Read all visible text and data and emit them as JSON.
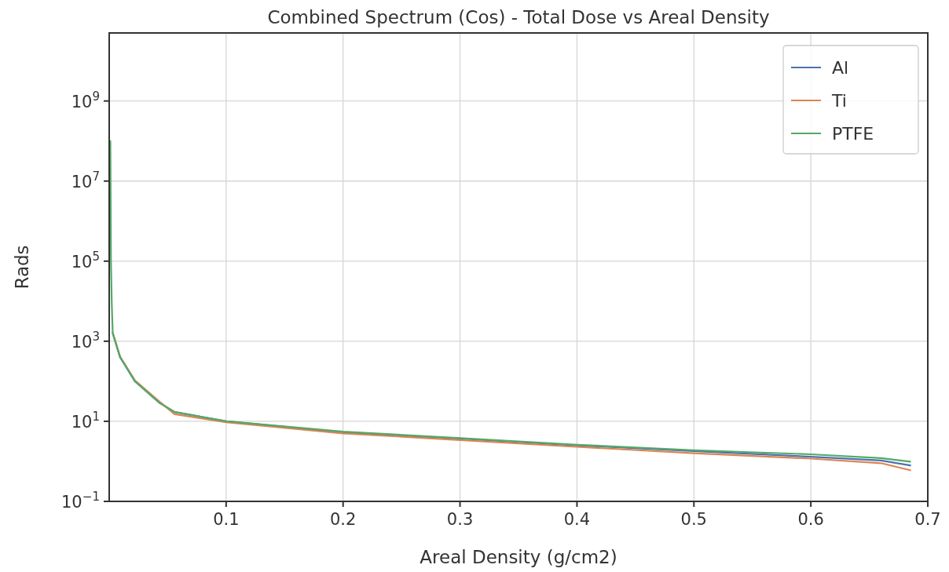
{
  "chart_data": {
    "type": "line",
    "title": "Combined Spectrum (Cos) - Total Dose vs Areal Density",
    "xlabel": "Areal Density (g/cm2)",
    "ylabel": "Rads",
    "x": [
      0.001,
      0.0015,
      0.0022,
      0.003,
      0.0093,
      0.022,
      0.043,
      0.056,
      0.1,
      0.2,
      0.3,
      0.4,
      0.5,
      0.6,
      0.66,
      0.685
    ],
    "series": [
      {
        "name": "Al",
        "color": "#4c72b0",
        "values": [
          null,
          null,
          null,
          1600,
          400,
          100,
          29,
          17,
          10,
          5.3,
          3.7,
          2.5,
          1.8,
          1.3,
          1.05,
          0.79
        ]
      },
      {
        "name": "Ti",
        "color": "#dd8452",
        "values": [
          null,
          null,
          null,
          1600,
          410,
          105,
          31,
          15,
          9.5,
          5,
          3.4,
          2.3,
          1.6,
          1.17,
          0.9,
          0.6
        ]
      },
      {
        "name": "PTFE",
        "color": "#55a868",
        "values": [
          100000000,
          100000,
          9000,
          1600,
          400,
          100,
          29,
          17,
          10,
          5.5,
          3.8,
          2.6,
          1.9,
          1.5,
          1.2,
          0.98
        ]
      }
    ],
    "log": "y",
    "xlim": [
      0,
      0.7
    ],
    "ylim": [
      0.1,
      50000000000
    ],
    "xticks": [
      0.1,
      0.2,
      0.3,
      0.4,
      0.5,
      0.6,
      0.7
    ],
    "yticks": [
      {
        "value": 0.1,
        "label": "10$^{−1}$"
      },
      {
        "value": 10,
        "label": "10$^{1}$"
      },
      {
        "value": 1000,
        "label": "10$^{3}$"
      },
      {
        "value": 100000,
        "label": "10$^{5}$"
      },
      {
        "value": 10000000,
        "label": "10$^{7}$"
      },
      {
        "value": 1000000000,
        "label": "10$^{9}$"
      }
    ],
    "grid": true,
    "legend": "top right",
    "line_style": "solid",
    "marker": "none"
  }
}
